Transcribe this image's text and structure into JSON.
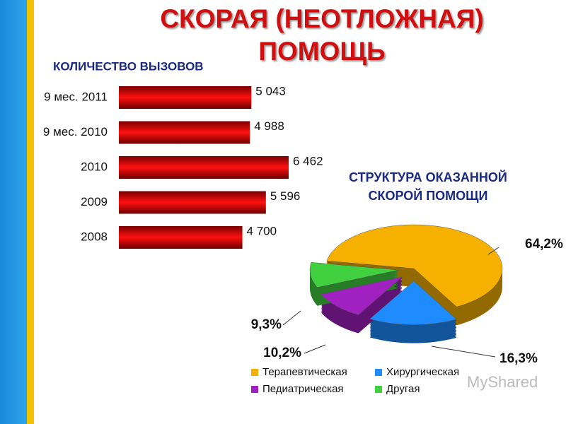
{
  "header": {
    "title": "СКОРАЯ (НЕОТЛОЖНАЯ) ПОМОЩЬ"
  },
  "watermark": "MyShared",
  "chart_data": [
    {
      "type": "bar",
      "orientation": "horizontal",
      "title": "КОЛИЧЕСТВО ВЫЗОВОВ",
      "categories": [
        "9 мес. 2011",
        "9 мес. 2010",
        "2010",
        "2009",
        "2008"
      ],
      "values": [
        5043,
        4988,
        6462,
        5596,
        4700
      ],
      "value_labels": [
        "5 043",
        "4 988",
        "6 462",
        "5 596",
        "4 700"
      ],
      "color": "#e00000"
    },
    {
      "type": "pie",
      "title": "СТРУКТУРА ОКАЗАННОЙ СКОРОЙ ПОМОЩИ",
      "categories": [
        "Терапевтическая",
        "Хирургическая",
        "Педиатрическая",
        "Другая"
      ],
      "values": [
        64.2,
        16.3,
        10.2,
        9.3
      ],
      "value_labels": [
        "64,2%",
        "16,3%",
        "10,2%",
        "9,3%"
      ],
      "colors": [
        "#f5b000",
        "#1e8cff",
        "#a020c0",
        "#40d040"
      ]
    }
  ]
}
